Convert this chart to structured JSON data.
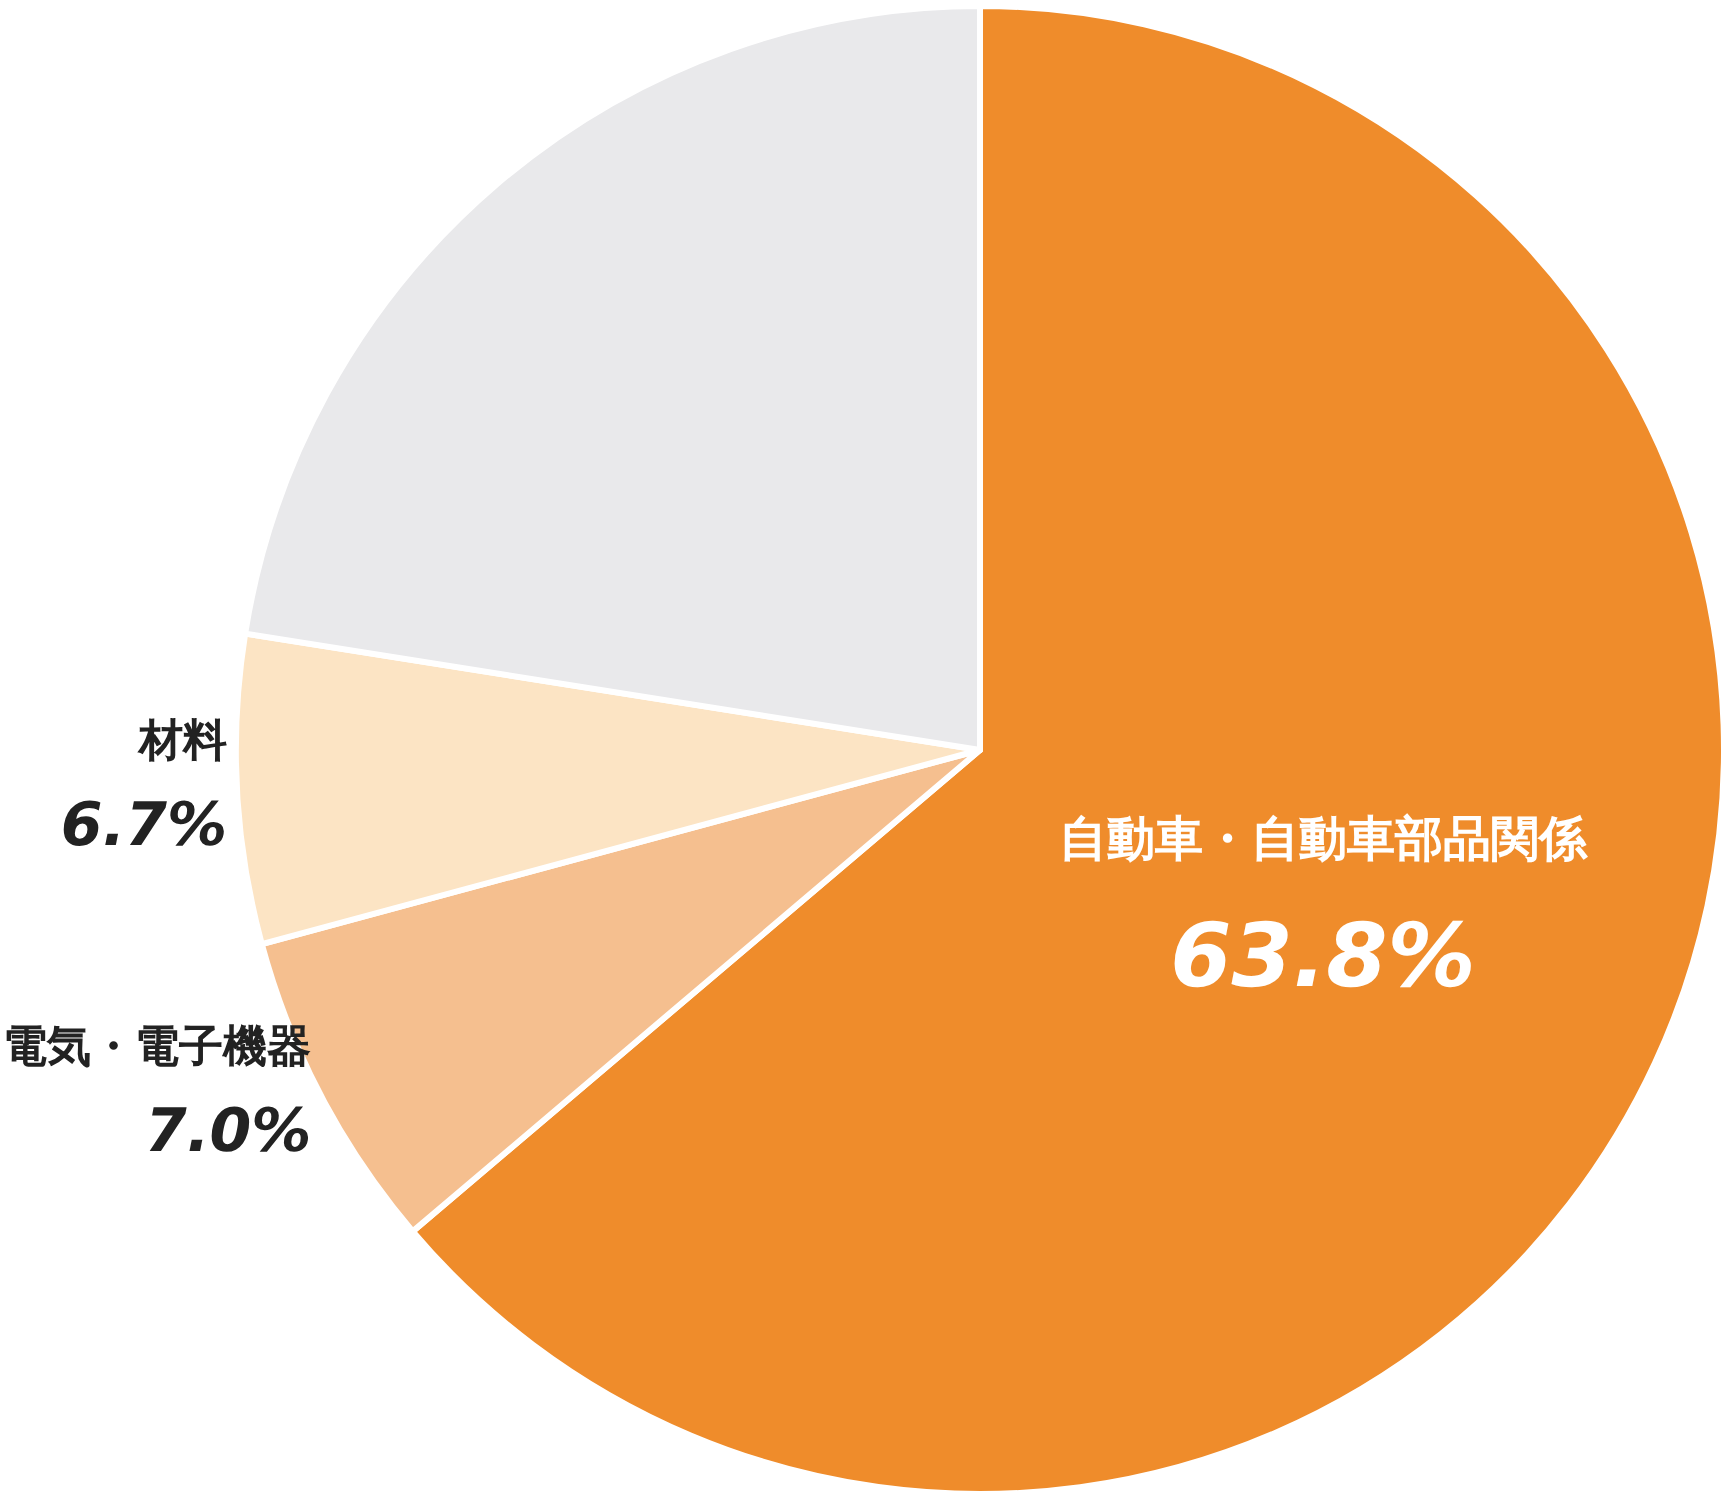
{
  "chart_data": {
    "type": "pie",
    "categories": [
      "自動車・自動車部品関係",
      "電気・電子機器",
      "材料",
      null
    ],
    "values": [
      63.8,
      7.0,
      6.7,
      22.5
    ],
    "colors": [
      "#ef8c2b",
      "#f5bf8f",
      "#fce4c4",
      "#e9e9eb"
    ],
    "value_labels": [
      "63.8%",
      "7.0%",
      "6.7%",
      null
    ],
    "legend": false
  }
}
